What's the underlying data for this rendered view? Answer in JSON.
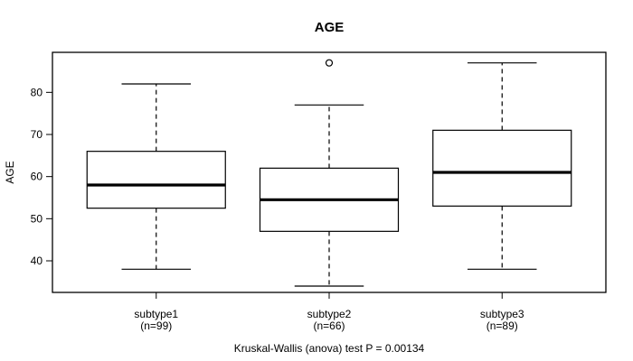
{
  "figure": {
    "title": "AGE",
    "ylabel": "AGE",
    "caption": "Kruskal-Wallis (anova) test P = 0.00134"
  },
  "colors": {
    "line": "#000000",
    "background": "#ffffff",
    "box_fill": "#ffffff"
  },
  "chart_data": {
    "type": "boxplot",
    "title": "AGE",
    "xlabel": "",
    "ylabel": "AGE",
    "caption": "Kruskal-Wallis (anova) test P = 0.00134",
    "grid": false,
    "ylim": [
      32.5,
      89.5
    ],
    "yticks": [
      40,
      50,
      60,
      70,
      80
    ],
    "categories": [
      "subtype1",
      "subtype2",
      "subtype3"
    ],
    "category_sublabels": [
      "(n=99)",
      "(n=66)",
      "(n=89)"
    ],
    "series": [
      {
        "name": "subtype1",
        "n": 99,
        "whisker_low": 38,
        "q1": 52.5,
        "median": 58,
        "q3": 66,
        "whisker_high": 82,
        "outliers": []
      },
      {
        "name": "subtype2",
        "n": 66,
        "whisker_low": 34,
        "q1": 47,
        "median": 54.5,
        "q3": 62,
        "whisker_high": 77,
        "outliers": [
          87
        ]
      },
      {
        "name": "subtype3",
        "n": 89,
        "whisker_low": 38,
        "q1": 53,
        "median": 61,
        "q3": 71,
        "whisker_high": 87,
        "outliers": []
      }
    ]
  }
}
